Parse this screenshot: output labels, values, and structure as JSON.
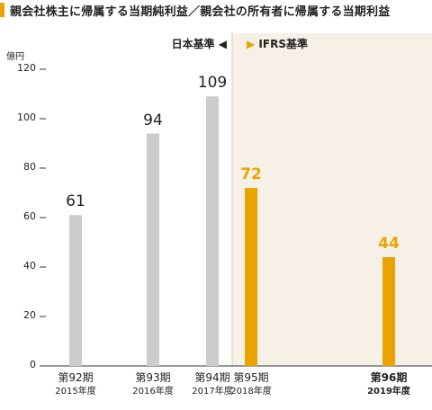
{
  "title": "親会社株主に帰属する当期純利益／親会社の所有者に帰属する当期利益",
  "colors": {
    "accent": "#e9a400",
    "gray_bar": "#cccccc",
    "ifrs_bg": "#f6f0e6"
  },
  "standards": {
    "left": "日本基準",
    "right": "IFRS基準"
  },
  "unit": "億円",
  "chart_data": {
    "type": "bar",
    "ylim": [
      0,
      120
    ],
    "yticks": [
      0,
      20,
      40,
      60,
      80,
      100,
      120
    ],
    "ytick_labels": [
      "0",
      "20",
      "40",
      "60",
      "80",
      "100",
      "120"
    ],
    "categories": [
      {
        "period": "第92期",
        "year": "2015年度",
        "standard": "日本基準",
        "bold": false
      },
      {
        "period": "第93期",
        "year": "2016年度",
        "standard": "日本基準",
        "bold": false
      },
      {
        "period": "第94期",
        "year": "2017年度",
        "standard": "日本基準",
        "bold": false
      },
      {
        "period": "第95期",
        "year": "2018年度",
        "standard": "IFRS基準",
        "bold": false
      },
      {
        "period": "第96期",
        "year": "2019年度",
        "standard": "IFRS基準",
        "bold": true
      }
    ],
    "values": [
      61,
      94,
      109,
      72,
      44
    ],
    "value_labels": [
      "61",
      "94",
      "109",
      "72",
      "44"
    ],
    "grid": false,
    "legend": "none"
  }
}
